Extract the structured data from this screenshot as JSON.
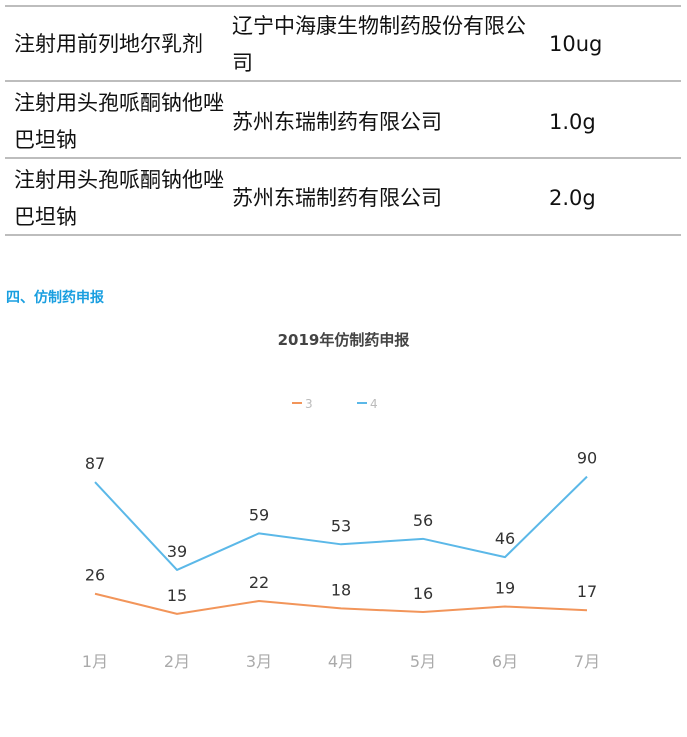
{
  "table": {
    "rows": [
      {
        "name": "注射用前列地尔乳剂",
        "company": "辽宁中海康生物制药股份有限公司",
        "spec": "10ug"
      },
      {
        "name": "注射用头孢哌酮钠他唑巴坦钠",
        "company": "苏州东瑞制药有限公司",
        "spec": "1.0g"
      },
      {
        "name": "注射用头孢哌酮钠他唑巴坦钠",
        "company": "苏州东瑞制药有限公司",
        "spec": "2.0g"
      }
    ]
  },
  "section": {
    "title": "四、仿制药申报"
  },
  "chart_data": {
    "type": "line",
    "title": "2019年仿制药申报",
    "categories": [
      "1月",
      "2月",
      "3月",
      "4月",
      "5月",
      "6月",
      "7月"
    ],
    "series": [
      {
        "name": "3",
        "values": [
          26,
          15,
          22,
          18,
          16,
          19,
          17
        ],
        "color": "#f2955a"
      },
      {
        "name": "4",
        "values": [
          87,
          39,
          59,
          53,
          56,
          46,
          90
        ],
        "color": "#5bb8e8"
      }
    ],
    "legend_position": "top-center",
    "grid": false,
    "ylim": [
      0,
      100
    ]
  }
}
